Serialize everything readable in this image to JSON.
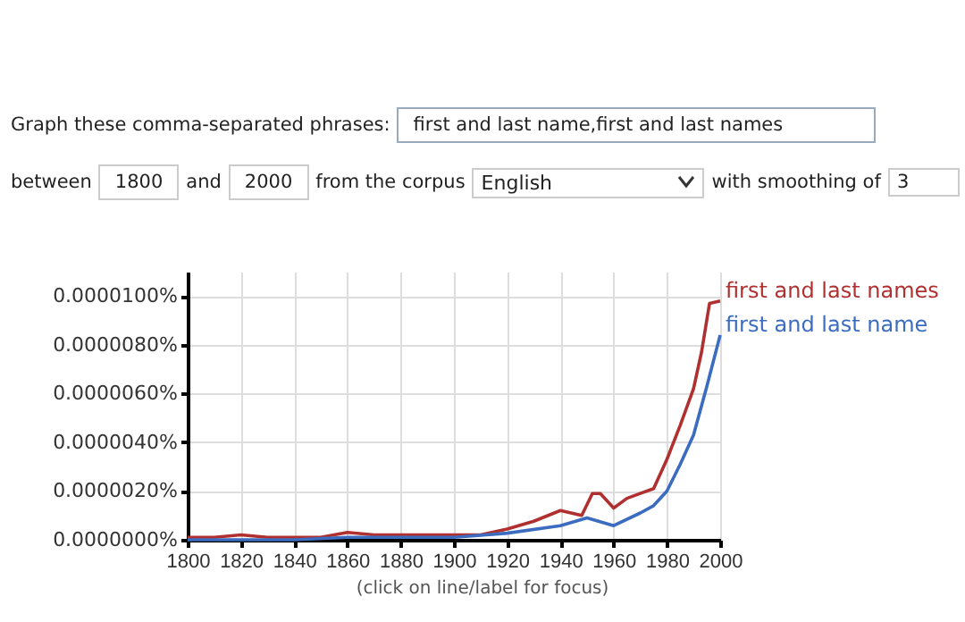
{
  "chart_data": {
    "type": "line",
    "x": [
      1800,
      1810,
      1820,
      1830,
      1840,
      1850,
      1860,
      1870,
      1880,
      1890,
      1900,
      1910,
      1920,
      1930,
      1940,
      1948,
      1952,
      1955,
      1960,
      1965,
      1970,
      1975,
      1980,
      1985,
      1990,
      1993,
      1996,
      2000
    ],
    "series": [
      {
        "name": "first and last names",
        "color": "#b03030",
        "values": [
          1e-07,
          1e-07,
          2e-07,
          1e-07,
          1e-07,
          1e-07,
          3e-07,
          2e-07,
          2e-07,
          2e-07,
          2e-07,
          2e-07,
          4.4e-07,
          7.6e-07,
          1.2e-06,
          1e-06,
          1.9e-06,
          1.9e-06,
          1.3e-06,
          1.7e-06,
          1.9e-06,
          2.1e-06,
          3.3e-06,
          4.7e-06,
          6.2e-06,
          7.7e-06,
          9.7e-06,
          9.8e-06
        ]
      },
      {
        "name": "first and last name",
        "color": "#3b6cc0",
        "x": [
          1800,
          1820,
          1840,
          1860,
          1880,
          1900,
          1920,
          1940,
          1950,
          1960,
          1970,
          1975,
          1980,
          1985,
          1990,
          1995,
          2000
        ],
        "values": [
          0,
          0,
          0,
          1e-07,
          1e-07,
          1e-07,
          2.7e-07,
          5.8e-07,
          9e-07,
          5.8e-07,
          1.1e-06,
          1.4e-06,
          2e-06,
          3.1e-06,
          4.3e-06,
          6.3e-06,
          8.4e-06
        ]
      }
    ],
    "xlim": [
      1800,
      2000
    ],
    "xticks": [
      1800,
      1820,
      1840,
      1860,
      1880,
      1900,
      1920,
      1940,
      1960,
      1980,
      2000
    ],
    "ylim": [
      0,
      1.1e-05
    ],
    "yticks": [
      {
        "value": 0,
        "label": "0.0000000%"
      },
      {
        "value": 2e-06,
        "label": "0.0000020%"
      },
      {
        "value": 4e-06,
        "label": "0.0000040%"
      },
      {
        "value": 6e-06,
        "label": "0.0000060%"
      },
      {
        "value": 8e-06,
        "label": "0.0000080%"
      },
      {
        "value": 1e-05,
        "label": "0.0000100%"
      }
    ],
    "grid": true,
    "legend": false,
    "annotations": [
      "Graph these comma-separated phrases:",
      "first and last name,first and last names",
      "between",
      "1800",
      "and",
      "2000",
      "from the corpus",
      "English",
      "with smoothing of",
      "3",
      "(click on line/label for focus)"
    ]
  }
}
